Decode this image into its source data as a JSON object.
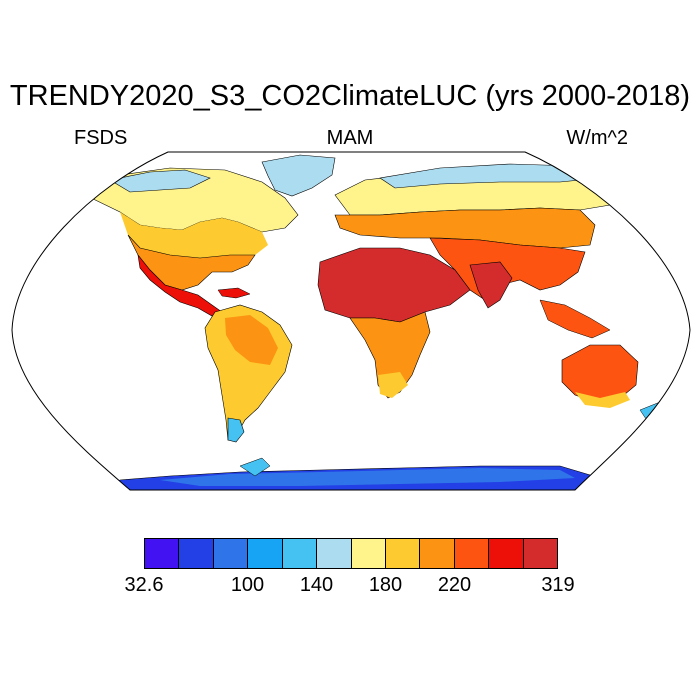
{
  "header": {
    "title": "TRENDY2020_S3_CO2ClimateLUC (yrs 2000-2018)",
    "variable": "FSDS",
    "season": "MAM",
    "units": "W/m^2"
  },
  "colorbar": {
    "colors": [
      "#4212f2",
      "#2340e6",
      "#2f74e8",
      "#17a4f5",
      "#45c2f2",
      "#abdcf0",
      "#fff38c",
      "#fdcb30",
      "#fc9312",
      "#fd5412",
      "#ec1008",
      "#d42c2c"
    ],
    "labels": [
      {
        "text": "32.6",
        "index": 0
      },
      {
        "text": "100",
        "index": 3
      },
      {
        "text": "140",
        "index": 5
      },
      {
        "text": "180",
        "index": 7
      },
      {
        "text": "220",
        "index": 9
      },
      {
        "text": "319",
        "index": 12
      }
    ]
  },
  "map": {
    "projection": "Robinson",
    "ocean_color": "#ffffff",
    "outline_color": "#000000"
  }
}
